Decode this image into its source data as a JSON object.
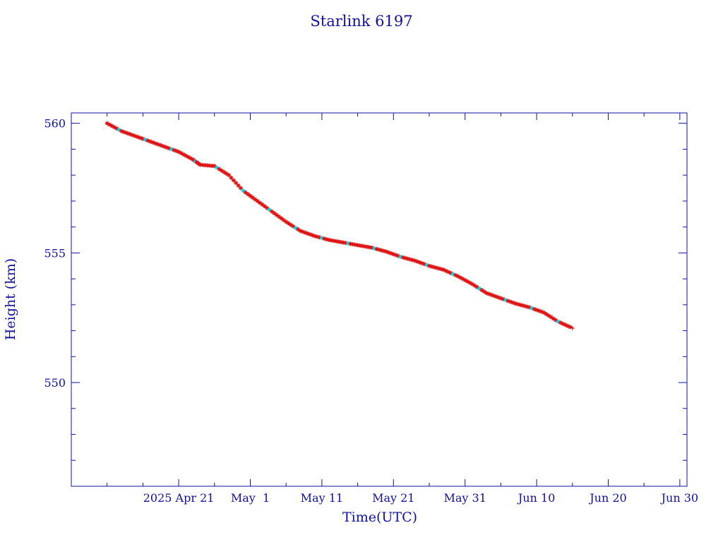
{
  "chart_data": {
    "type": "scatter",
    "title": "Starlink 6197",
    "xlabel": "Time(UTC)",
    "ylabel": "Height (km)",
    "x_range": [
      "2025-04-06",
      "2025-07-01"
    ],
    "ylim": [
      546,
      560.4
    ],
    "y_ticks": [
      550,
      555,
      560
    ],
    "x_ticks": [
      {
        "date": "2025-04-21",
        "label": "2025 Apr 21"
      },
      {
        "date": "2025-05-01",
        "label": "May  1"
      },
      {
        "date": "2025-05-11",
        "label": "May 11"
      },
      {
        "date": "2025-05-21",
        "label": "May 21"
      },
      {
        "date": "2025-05-31",
        "label": "May 31"
      },
      {
        "date": "2025-06-10",
        "label": "Jun 10"
      },
      {
        "date": "2025-06-20",
        "label": "Jun 20"
      },
      {
        "date": "2025-06-30",
        "label": "Jun 30"
      }
    ],
    "grid": false,
    "colors": {
      "frame": "#1010a0",
      "line": "#000000",
      "primary_points": "#e01010",
      "secondary_points": "#00d8e8"
    },
    "series": [
      {
        "points": [
          [
            "2025-04-11",
            560.0
          ],
          [
            "2025-04-13",
            559.7
          ],
          [
            "2025-04-15",
            559.5
          ],
          [
            "2025-04-17",
            559.3
          ],
          [
            "2025-04-19",
            559.1
          ],
          [
            "2025-04-21",
            558.9
          ],
          [
            "2025-04-23",
            558.6
          ],
          [
            "2025-04-24",
            558.4
          ],
          [
            "2025-04-26",
            558.35
          ],
          [
            "2025-04-28",
            558.0
          ],
          [
            "2025-04-30",
            557.4
          ],
          [
            "2025-05-02",
            557.0
          ],
          [
            "2025-05-04",
            556.6
          ],
          [
            "2025-05-06",
            556.2
          ],
          [
            "2025-05-08",
            555.85
          ],
          [
            "2025-05-10",
            555.65
          ],
          [
            "2025-05-12",
            555.5
          ],
          [
            "2025-05-14",
            555.4
          ],
          [
            "2025-05-16",
            555.3
          ],
          [
            "2025-05-18",
            555.2
          ],
          [
            "2025-05-20",
            555.05
          ],
          [
            "2025-05-22",
            554.85
          ],
          [
            "2025-05-24",
            554.7
          ],
          [
            "2025-05-26",
            554.5
          ],
          [
            "2025-05-28",
            554.35
          ],
          [
            "2025-05-30",
            554.1
          ],
          [
            "2025-06-01",
            553.8
          ],
          [
            "2025-06-03",
            553.45
          ],
          [
            "2025-06-05",
            553.25
          ],
          [
            "2025-06-07",
            553.05
          ],
          [
            "2025-06-09",
            552.9
          ],
          [
            "2025-06-11",
            552.7
          ],
          [
            "2025-06-13",
            552.35
          ],
          [
            "2025-06-15",
            552.1
          ]
        ]
      }
    ]
  }
}
